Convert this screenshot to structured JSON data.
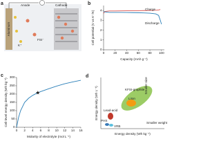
{
  "panel_a": {
    "letter": "a",
    "anode": "Anode",
    "cathode": "Cathode",
    "left_electrode": "Aluminum",
    "ion": "K⁺",
    "anion": "FSI⁻"
  },
  "chart_data": [
    {
      "type": "line",
      "panel": "b",
      "x_label": "Capacity (mAh g⁻¹)",
      "y_label": "Cell potential (V vs K⁺/K)",
      "x": [
        0,
        2,
        10,
        20,
        30,
        40,
        50,
        60,
        70,
        80,
        90,
        95,
        98,
        100
      ],
      "series": [
        {
          "name": "Charge",
          "color": "#d9534f",
          "values": [
            3.7,
            3.9,
            3.95,
            3.95,
            3.96,
            3.97,
            3.98,
            3.98,
            3.99,
            4.0,
            4.02,
            4.05,
            4.1,
            null
          ]
        },
        {
          "name": "Discharge",
          "color": "#2a7fb8",
          "values": [
            3.9,
            3.85,
            3.8,
            3.8,
            3.8,
            3.79,
            3.78,
            3.77,
            3.75,
            3.72,
            3.65,
            3.5,
            3.0,
            2.6
          ]
        }
      ],
      "xlim": [
        0,
        105
      ],
      "xticks": [
        0,
        20,
        40,
        60,
        80,
        100
      ],
      "ylim": [
        0,
        4.5
      ],
      "yticks": [
        0,
        1,
        2,
        3,
        4
      ]
    },
    {
      "type": "line",
      "panel": "c",
      "x_label": "Molarity of electrolyte (mol L⁻¹)",
      "y_label": "Cell-level energy density (Wh kg⁻¹)",
      "x": [
        0,
        0.5,
        1,
        2,
        3,
        4,
        5,
        6,
        8,
        10,
        12,
        14,
        16
      ],
      "series": [
        {
          "name": null,
          "color": "#2a7fb8",
          "values": [
            0,
            60,
            100,
            150,
            175,
            192,
            205,
            215,
            232,
            248,
            262,
            273,
            283
          ]
        }
      ],
      "marker": {
        "x": 5.3,
        "y": 208
      },
      "xlim": [
        0,
        16
      ],
      "xticks": [
        0,
        2,
        4,
        6,
        8,
        10,
        12,
        14,
        16
      ],
      "ylim": [
        0,
        300
      ],
      "yticks": [
        0,
        50,
        100,
        150,
        200,
        250,
        300
      ]
    }
  ],
  "panel_d": {
    "letter": "d",
    "x_label": "Energy density (Wh kg⁻¹)",
    "y_label": "Energy density (Wh L⁻¹)",
    "kfsi": "KFSI-graphite",
    "liion": "LiIon",
    "lead": "Lead-acid",
    "phs": "PHS",
    "vrb": "VRB",
    "smaller_size": "Smaller size",
    "smaller_weight": "Smaller weight"
  }
}
